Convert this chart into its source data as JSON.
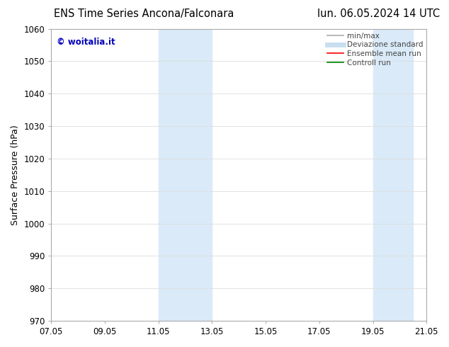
{
  "title_left": "ENS Time Series Ancona/Falconara",
  "title_right": "lun. 06.05.2024 14 UTC",
  "ylabel": "Surface Pressure (hPa)",
  "ylim": [
    970,
    1060
  ],
  "yticks": [
    970,
    980,
    990,
    1000,
    1010,
    1020,
    1030,
    1040,
    1050,
    1060
  ],
  "xtick_labels": [
    "07.05",
    "09.05",
    "11.05",
    "13.05",
    "15.05",
    "17.05",
    "19.05",
    "21.05"
  ],
  "xtick_positions": [
    0,
    2,
    4,
    6,
    8,
    10,
    12,
    14
  ],
  "xlim": [
    0,
    14
  ],
  "shaded_groups": [
    {
      "x_start": 4.0,
      "x_end": 6.0
    },
    {
      "x_start": 12.0,
      "x_end": 13.5
    }
  ],
  "shaded_color": "#daeaf8",
  "watermark_text": "© woitalia.it",
  "watermark_color": "#0000bb",
  "legend_items": [
    {
      "label": "min/max",
      "color": "#aaaaaa",
      "lw": 1.2
    },
    {
      "label": "Deviazione standard",
      "color": "#c8dff0",
      "lw": 5
    },
    {
      "label": "Ensemble mean run",
      "color": "#ff0000",
      "lw": 1.2
    },
    {
      "label": "Controll run",
      "color": "#008000",
      "lw": 1.2
    }
  ],
  "background_color": "#ffffff",
  "grid_color": "#dddddd",
  "spine_color": "#aaaaaa",
  "title_fontsize": 10.5,
  "ylabel_fontsize": 9,
  "tick_fontsize": 8.5,
  "legend_fontsize": 7.5,
  "watermark_fontsize": 8.5,
  "font_family": "DejaVu Sans"
}
